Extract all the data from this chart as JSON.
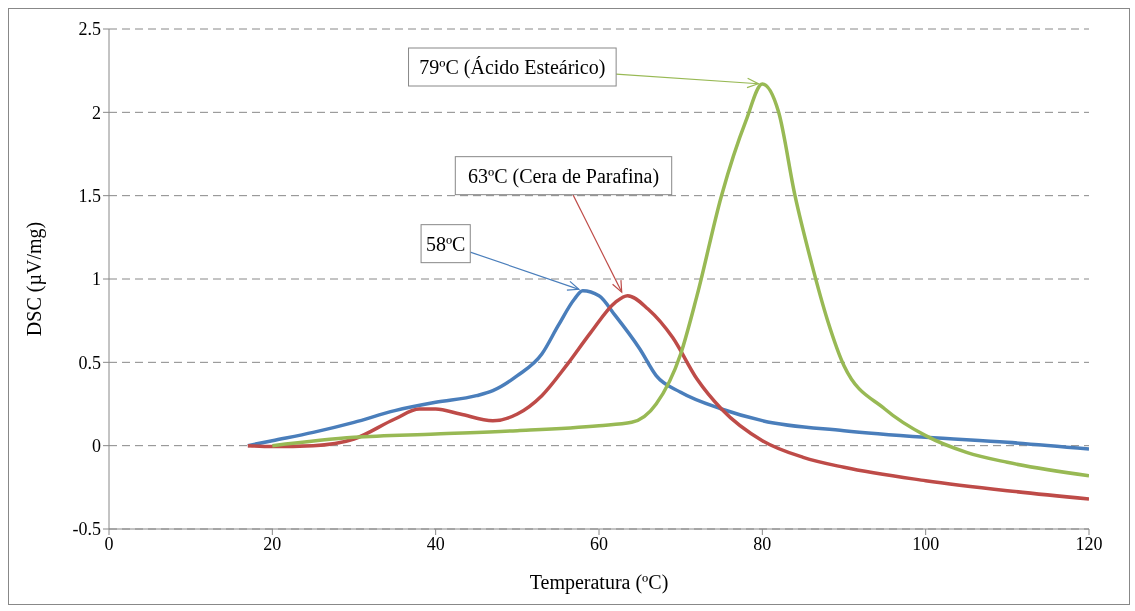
{
  "chart_data": {
    "type": "line",
    "xlabel": "Temperatura (ºC)",
    "ylabel": "DSC (µV/mg)",
    "xlim": [
      0,
      120
    ],
    "xticks": [
      0,
      20,
      40,
      60,
      80,
      100,
      120
    ],
    "ylim": [
      -0.5,
      2.5
    ],
    "yticks": [
      -0.5,
      0,
      0.5,
      1,
      1.5,
      2,
      2.5
    ],
    "grid": "y",
    "marker": "none",
    "line_style": "solid",
    "annotations": [
      {
        "text": "58ºC",
        "x": 58,
        "y": 0.93
      },
      {
        "text": "63ºC (Cera de Parafina)",
        "x": 63,
        "y": 0.9
      },
      {
        "text": "79ºC (Ácido Esteárico)",
        "x": 80,
        "y": 2.17
      }
    ],
    "series": [
      {
        "color": "#4a7ebb",
        "x": [
          17,
          20,
          25,
          30,
          35,
          40,
          45,
          47,
          50,
          53,
          55,
          57,
          58,
          60,
          62,
          65,
          67,
          70,
          75,
          80,
          90,
          100,
          110,
          120
        ],
        "values": [
          0,
          0.03,
          0.08,
          0.14,
          0.21,
          0.26,
          0.3,
          0.33,
          0.42,
          0.55,
          0.72,
          0.88,
          0.93,
          0.9,
          0.78,
          0.58,
          0.42,
          0.32,
          0.22,
          0.15,
          0.09,
          0.05,
          0.02,
          -0.02
        ]
      },
      {
        "color": "#be4b48",
        "x": [
          17,
          20,
          25,
          30,
          35,
          38,
          40,
          43,
          47,
          50,
          53,
          56,
          59,
          62,
          63.5,
          66,
          69,
          72,
          75,
          80,
          85,
          90,
          100,
          110,
          120
        ],
        "values": [
          0,
          -0.005,
          0,
          0.04,
          0.16,
          0.22,
          0.22,
          0.19,
          0.15,
          0.19,
          0.3,
          0.48,
          0.68,
          0.86,
          0.9,
          0.82,
          0.65,
          0.4,
          0.22,
          0.03,
          -0.07,
          -0.13,
          -0.21,
          -0.27,
          -0.32
        ]
      },
      {
        "color": "#98b954",
        "x": [
          20,
          30,
          40,
          50,
          60,
          64,
          67,
          70,
          72,
          75,
          78,
          80,
          82,
          84,
          86,
          88,
          90,
          95,
          100,
          105,
          110,
          120
        ],
        "values": [
          0,
          0.05,
          0.07,
          0.09,
          0.12,
          0.14,
          0.25,
          0.55,
          0.9,
          1.5,
          1.95,
          2.17,
          2,
          1.5,
          1.1,
          0.75,
          0.48,
          0.22,
          0.06,
          -0.04,
          -0.1,
          -0.18
        ]
      }
    ]
  }
}
